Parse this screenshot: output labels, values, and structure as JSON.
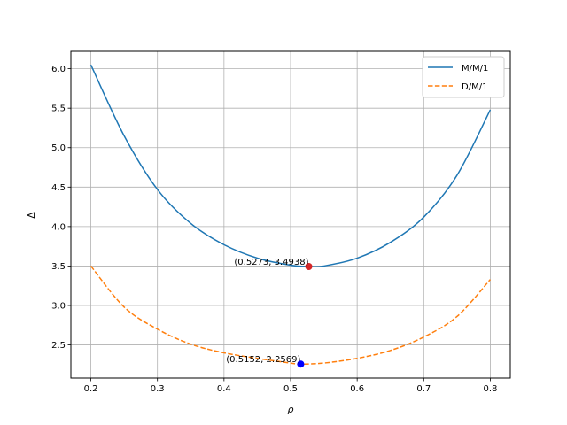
{
  "chart_data": {
    "type": "line",
    "title": "",
    "xlabel": "ρ",
    "ylabel": "Δ",
    "xlim": [
      0.17,
      0.83
    ],
    "ylim": [
      2.08,
      6.22
    ],
    "xticks": [
      0.2,
      0.3,
      0.4,
      0.5,
      0.6,
      0.7,
      0.8
    ],
    "xtick_labels": [
      "0.2",
      "0.3",
      "0.4",
      "0.5",
      "0.6",
      "0.7",
      "0.8"
    ],
    "yticks": [
      2.5,
      3.0,
      3.5,
      4.0,
      4.5,
      5.0,
      5.5,
      6.0
    ],
    "ytick_labels": [
      "2.5",
      "3.0",
      "3.5",
      "4.0",
      "4.5",
      "5.0",
      "5.5",
      "6.0"
    ],
    "grid": true,
    "legend_position": "top-right",
    "series": [
      {
        "name": "M/M/1",
        "style": "solid",
        "color": "#1f77b4",
        "x": [
          0.2,
          0.25,
          0.3,
          0.35,
          0.4,
          0.45,
          0.5,
          0.5273,
          0.55,
          0.6,
          0.65,
          0.7,
          0.75,
          0.8
        ],
        "y": [
          6.05,
          5.15,
          4.47,
          4.04,
          3.77,
          3.6,
          3.51,
          3.494,
          3.5,
          3.6,
          3.8,
          4.12,
          4.65,
          5.48
        ]
      },
      {
        "name": "D/M/1",
        "style": "dashed",
        "color": "#ff7f0e",
        "x": [
          0.2,
          0.25,
          0.3,
          0.35,
          0.4,
          0.45,
          0.5,
          0.5152,
          0.55,
          0.6,
          0.65,
          0.7,
          0.75,
          0.8
        ],
        "y": [
          3.5,
          2.98,
          2.7,
          2.51,
          2.4,
          2.33,
          2.27,
          2.257,
          2.27,
          2.33,
          2.43,
          2.6,
          2.86,
          3.33
        ]
      }
    ],
    "markers": [
      {
        "x": 0.5273,
        "y": 3.4938,
        "color": "#d62728",
        "label": "(0.5273, 3.4938)"
      },
      {
        "x": 0.5152,
        "y": 2.2569,
        "color": "#0000ff",
        "label": "(0.5152, 2.2569)"
      }
    ]
  }
}
